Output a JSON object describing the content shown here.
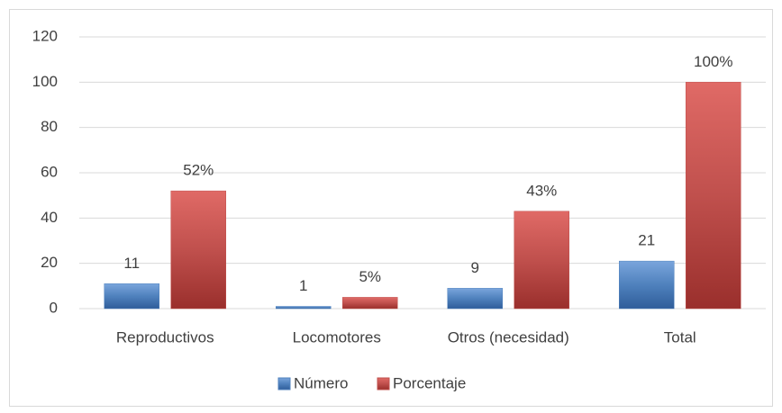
{
  "chart_data": {
    "type": "bar",
    "categories": [
      "Reproductivos",
      "Locomotores",
      "Otros (necesidad)",
      "Total"
    ],
    "series": [
      {
        "name": "Número",
        "color": "#4f81bd",
        "values": [
          11,
          1,
          9,
          21
        ]
      },
      {
        "name": "Porcentaje",
        "color": "#c0504d",
        "values": [
          52,
          5,
          43,
          100
        ],
        "value_labels": [
          "52%",
          "5%",
          "43%",
          "100%"
        ]
      }
    ],
    "ylim": [
      0,
      120
    ],
    "yticks": [
      0,
      20,
      40,
      60,
      80,
      100,
      120
    ],
    "grid": true,
    "legend": "bottom"
  }
}
